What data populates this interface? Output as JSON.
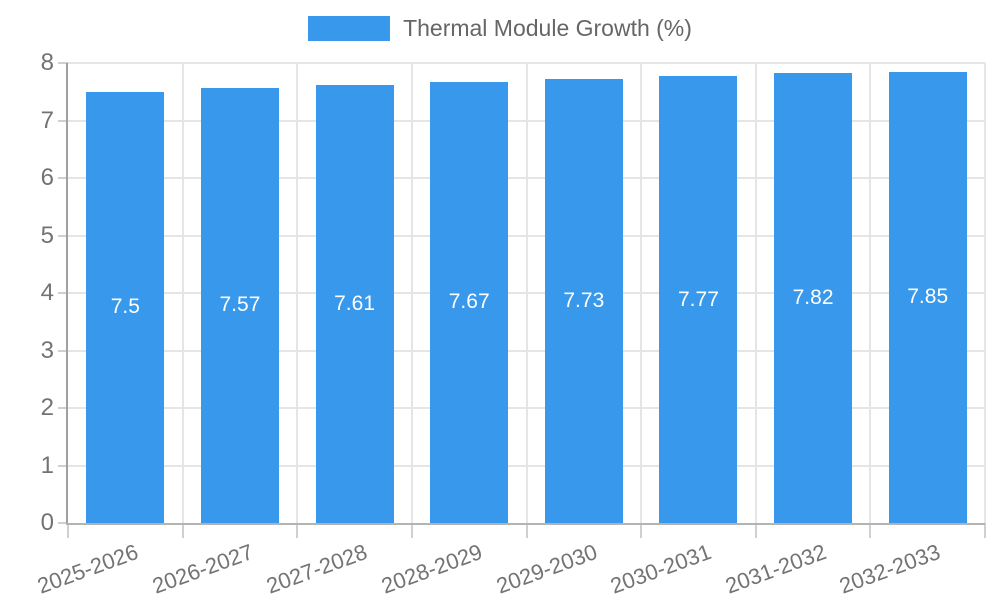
{
  "chart_data": {
    "type": "bar",
    "title": "",
    "legend": {
      "label": "Thermal Module Growth (%)",
      "position": "top-center"
    },
    "categories": [
      "2025-2026",
      "2026-2027",
      "2027-2028",
      "2028-2029",
      "2029-2030",
      "2030-2031",
      "2031-2032",
      "2032-2033"
    ],
    "values": [
      7.5,
      7.57,
      7.61,
      7.67,
      7.73,
      7.77,
      7.82,
      7.85
    ],
    "value_labels": [
      "7.5",
      "7.57",
      "7.61",
      "7.67",
      "7.73",
      "7.77",
      "7.82",
      "7.85"
    ],
    "xlabel": "",
    "ylabel": "",
    "ylim": [
      0,
      8
    ],
    "yticks": [
      0,
      1,
      2,
      3,
      4,
      5,
      6,
      7,
      8
    ],
    "grid": true,
    "bar_value_label_position": "center-inside",
    "colors": {
      "bar": "#3899ec",
      "bar_label": "#ffffff",
      "grid": "#e5e5e5",
      "axis_line_y": "#a0a0a0",
      "axis_line_x": "#b3b3b3",
      "tick_mark": "#d0d0d0",
      "tick_label": "#737373",
      "legend_text": "#666666"
    }
  }
}
